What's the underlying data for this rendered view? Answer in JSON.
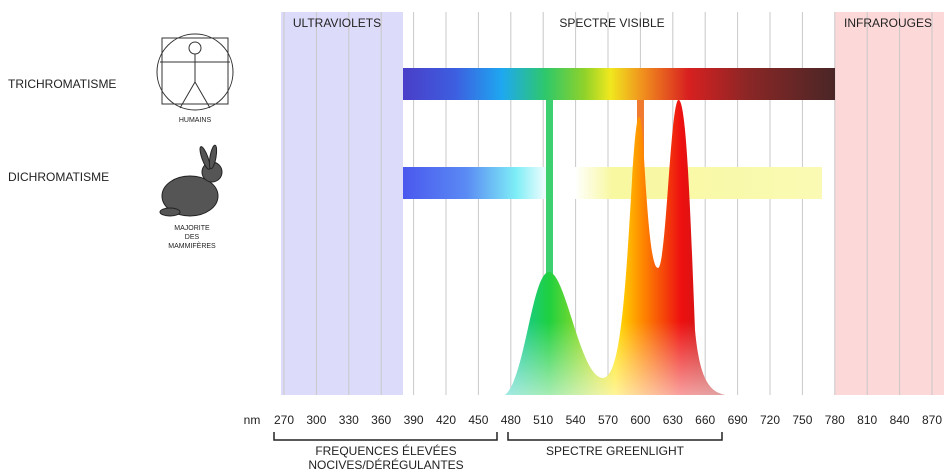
{
  "regions": {
    "uv": "ULTRAVIOLETS",
    "visible": "SPECTRE VISIBLE",
    "ir": "INFRAROUGES"
  },
  "rows": [
    {
      "label": "TRICHROMATISME",
      "caption": [
        "HUMAINS"
      ]
    },
    {
      "label": "DICHROMATISME",
      "caption": [
        "MAJORITE",
        "DES",
        "MAMMIFÈRES"
      ]
    }
  ],
  "axis": {
    "unit": "nm",
    "ticks": [
      270,
      300,
      330,
      360,
      390,
      420,
      450,
      480,
      510,
      540,
      570,
      600,
      630,
      660,
      690,
      720,
      750,
      780,
      810,
      840,
      870
    ]
  },
  "brackets": [
    {
      "label": [
        "FREQUENCES ÉLEVÉES",
        "NOCIVES/DÉRÉGULANTES"
      ]
    },
    {
      "label": [
        "SPECTRE GREENLIGHT"
      ]
    }
  ]
}
